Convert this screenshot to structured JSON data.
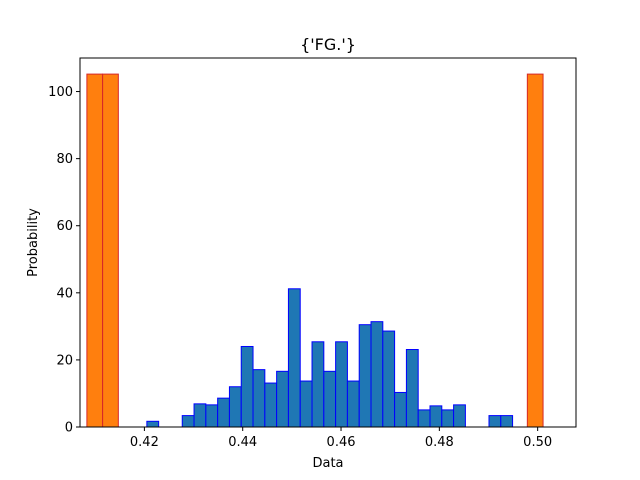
{
  "chart_data": {
    "type": "bar",
    "title": "{'FG.'}",
    "xlabel": "Data",
    "ylabel": "Probability",
    "xlim": [
      0.4069,
      0.5078
    ],
    "ylim": [
      0,
      110
    ],
    "xticks": [
      "0.42",
      "0.44",
      "0.46",
      "0.48",
      "0.50"
    ],
    "xtick_values": [
      0.42,
      0.44,
      0.46,
      0.48,
      0.5
    ],
    "yticks": [
      "0",
      "20",
      "40",
      "60",
      "80",
      "100"
    ],
    "ytick_values": [
      0,
      20,
      40,
      60,
      80,
      100
    ],
    "grid": false,
    "series": [
      {
        "color": "#1f77b4",
        "edgecolor": "#0000ff",
        "bins": [
          {
            "x0": 0.4109,
            "x1": 0.4133,
            "y": 0
          },
          {
            "x0": 0.4133,
            "x1": 0.4157,
            "y": 0
          },
          {
            "x0": 0.4157,
            "x1": 0.4181,
            "y": 0
          },
          {
            "x0": 0.4181,
            "x1": 0.4205,
            "y": 0
          },
          {
            "x0": 0.4205,
            "x1": 0.4229,
            "y": 1.7
          },
          {
            "x0": 0.4229,
            "x1": 0.4253,
            "y": 0
          },
          {
            "x0": 0.4253,
            "x1": 0.4277,
            "y": 0
          },
          {
            "x0": 0.4277,
            "x1": 0.4301,
            "y": 3.4
          },
          {
            "x0": 0.4301,
            "x1": 0.4325,
            "y": 6.9
          },
          {
            "x0": 0.4325,
            "x1": 0.4349,
            "y": 6.6
          },
          {
            "x0": 0.4349,
            "x1": 0.4373,
            "y": 8.6
          },
          {
            "x0": 0.4373,
            "x1": 0.4397,
            "y": 12.0
          },
          {
            "x0": 0.4397,
            "x1": 0.4421,
            "y": 24.0
          },
          {
            "x0": 0.4421,
            "x1": 0.4445,
            "y": 17.1
          },
          {
            "x0": 0.4445,
            "x1": 0.4469,
            "y": 13.1
          },
          {
            "x0": 0.4469,
            "x1": 0.4493,
            "y": 16.6
          },
          {
            "x0": 0.4493,
            "x1": 0.4517,
            "y": 41.2
          },
          {
            "x0": 0.4517,
            "x1": 0.4541,
            "y": 13.7
          },
          {
            "x0": 0.4541,
            "x1": 0.4565,
            "y": 25.4
          },
          {
            "x0": 0.4565,
            "x1": 0.4589,
            "y": 16.6
          },
          {
            "x0": 0.4589,
            "x1": 0.4613,
            "y": 25.4
          },
          {
            "x0": 0.4613,
            "x1": 0.4637,
            "y": 13.7
          },
          {
            "x0": 0.4637,
            "x1": 0.4661,
            "y": 30.5
          },
          {
            "x0": 0.4661,
            "x1": 0.4685,
            "y": 31.4
          },
          {
            "x0": 0.4685,
            "x1": 0.4709,
            "y": 28.6
          },
          {
            "x0": 0.4709,
            "x1": 0.4733,
            "y": 10.3
          },
          {
            "x0": 0.4733,
            "x1": 0.4757,
            "y": 23.1
          },
          {
            "x0": 0.4757,
            "x1": 0.4781,
            "y": 5.1
          },
          {
            "x0": 0.4781,
            "x1": 0.4805,
            "y": 6.3
          },
          {
            "x0": 0.4805,
            "x1": 0.4829,
            "y": 5.1
          },
          {
            "x0": 0.4829,
            "x1": 0.4853,
            "y": 6.6
          },
          {
            "x0": 0.4853,
            "x1": 0.4877,
            "y": 0
          },
          {
            "x0": 0.4877,
            "x1": 0.4901,
            "y": 0
          },
          {
            "x0": 0.4901,
            "x1": 0.4925,
            "y": 3.4
          },
          {
            "x0": 0.4925,
            "x1": 0.4949,
            "y": 3.4
          }
        ]
      },
      {
        "color": "#ff7f0e",
        "edgecolor": "#d62728",
        "bins": [
          {
            "x0": 0.4083,
            "x1": 0.4115,
            "y": 105.2
          },
          {
            "x0": 0.4115,
            "x1": 0.4147,
            "y": 105.2
          },
          {
            "x0": 0.4147,
            "x1": 0.4179,
            "y": 0
          },
          {
            "x0": 0.4179,
            "x1": 0.4211,
            "y": 0
          },
          {
            "x0": 0.4211,
            "x1": 0.4243,
            "y": 0
          },
          {
            "x0": 0.4243,
            "x1": 0.4275,
            "y": 0
          },
          {
            "x0": 0.4275,
            "x1": 0.4307,
            "y": 0
          },
          {
            "x0": 0.4307,
            "x1": 0.4339,
            "y": 0
          },
          {
            "x0": 0.4339,
            "x1": 0.4371,
            "y": 0
          },
          {
            "x0": 0.4371,
            "x1": 0.4403,
            "y": 0
          },
          {
            "x0": 0.4403,
            "x1": 0.4435,
            "y": 0
          },
          {
            "x0": 0.4435,
            "x1": 0.4467,
            "y": 0
          },
          {
            "x0": 0.4467,
            "x1": 0.4499,
            "y": 0
          },
          {
            "x0": 0.4499,
            "x1": 0.4531,
            "y": 0
          },
          {
            "x0": 0.4531,
            "x1": 0.4563,
            "y": 0
          },
          {
            "x0": 0.4563,
            "x1": 0.4595,
            "y": 0
          },
          {
            "x0": 0.4595,
            "x1": 0.4627,
            "y": 0
          },
          {
            "x0": 0.4627,
            "x1": 0.4659,
            "y": 0
          },
          {
            "x0": 0.4659,
            "x1": 0.4691,
            "y": 0
          },
          {
            "x0": 0.4691,
            "x1": 0.4723,
            "y": 0
          },
          {
            "x0": 0.4723,
            "x1": 0.4755,
            "y": 0
          },
          {
            "x0": 0.4755,
            "x1": 0.4787,
            "y": 0
          },
          {
            "x0": 0.4787,
            "x1": 0.4819,
            "y": 0
          },
          {
            "x0": 0.4819,
            "x1": 0.4851,
            "y": 0
          },
          {
            "x0": 0.4851,
            "x1": 0.4883,
            "y": 0
          },
          {
            "x0": 0.4883,
            "x1": 0.4915,
            "y": 0
          },
          {
            "x0": 0.4915,
            "x1": 0.4947,
            "y": 0
          },
          {
            "x0": 0.4947,
            "x1": 0.4979,
            "y": 0
          },
          {
            "x0": 0.4979,
            "x1": 0.5011,
            "y": 105.2
          }
        ]
      }
    ]
  }
}
